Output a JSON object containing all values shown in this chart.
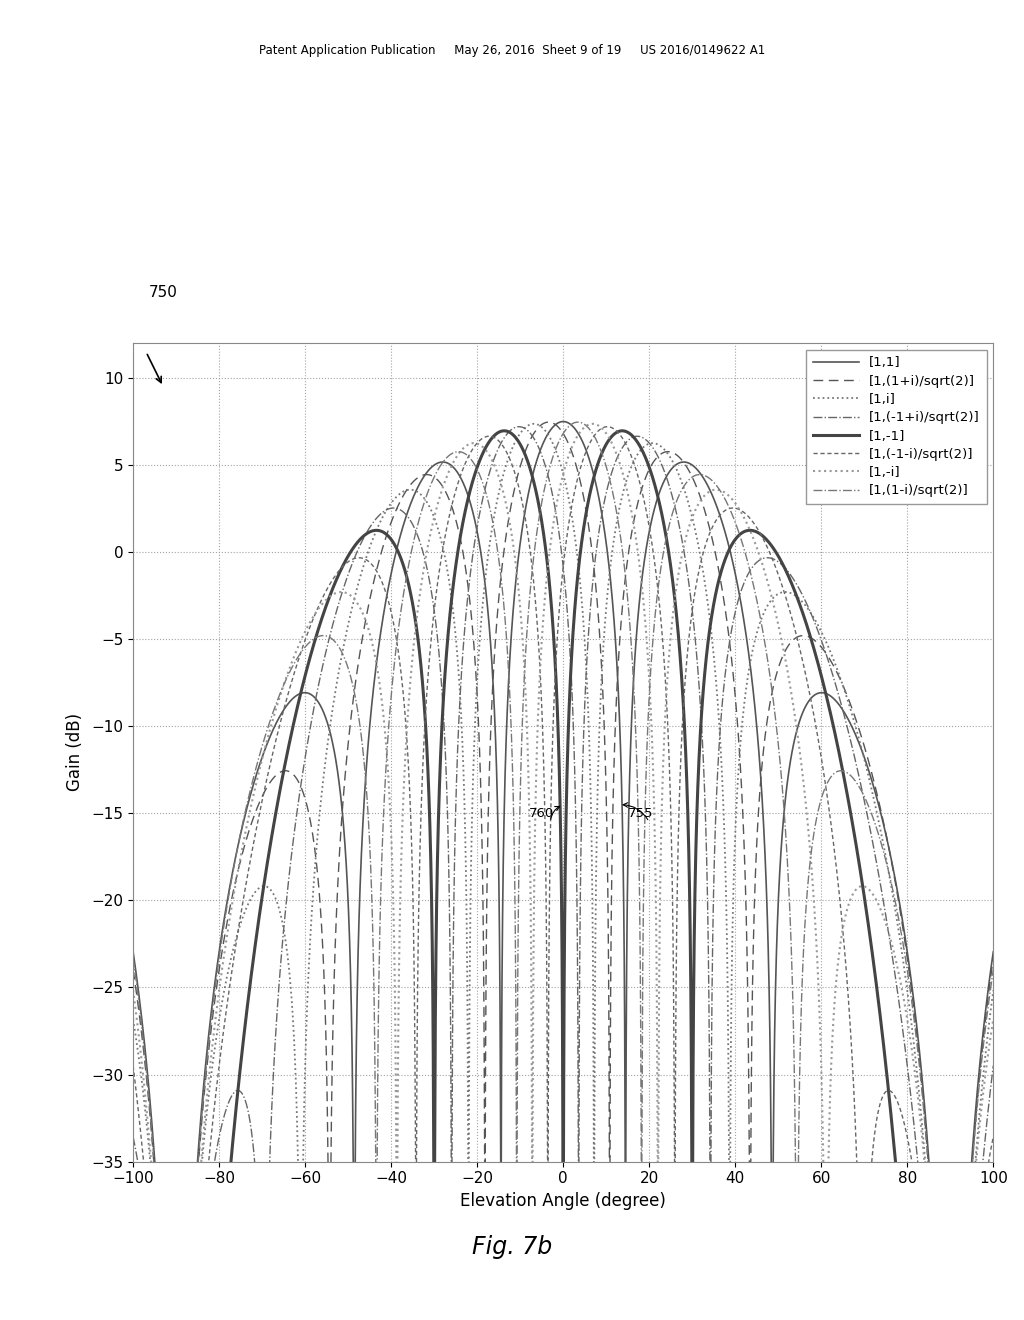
{
  "xlabel": "Elevation Angle (degree)",
  "ylabel": "Gain (dB)",
  "xlim": [
    -100,
    100
  ],
  "ylim": [
    -35,
    12
  ],
  "yticks": [
    10,
    5,
    0,
    -5,
    -10,
    -15,
    -20,
    -25,
    -30,
    -35
  ],
  "xticks": [
    -100,
    -80,
    -60,
    -40,
    -20,
    0,
    20,
    40,
    60,
    80,
    100
  ],
  "legend_labels": [
    "[1,1]",
    "[1,(1+i)/sqrt(2)]",
    "[1,i]",
    "[1,(-1+i)/sqrt(2)]",
    "[1,-1]",
    "[1,(-1-i)/sqrt(2)]",
    "[1,-i]",
    "[1,(1-i)/sqrt(2)]"
  ],
  "background_color": "#ffffff",
  "fig_label": "750",
  "annotation_760": "760",
  "annotation_755": "755",
  "patent_text": "Patent Application Publication     May 26, 2016  Sheet 9 of 19     US 2016/0149622 A1",
  "fig_caption": "Fig. 7b",
  "n_elements": 2,
  "d_over_lambda": 2.0,
  "target_max_db": 7.5
}
